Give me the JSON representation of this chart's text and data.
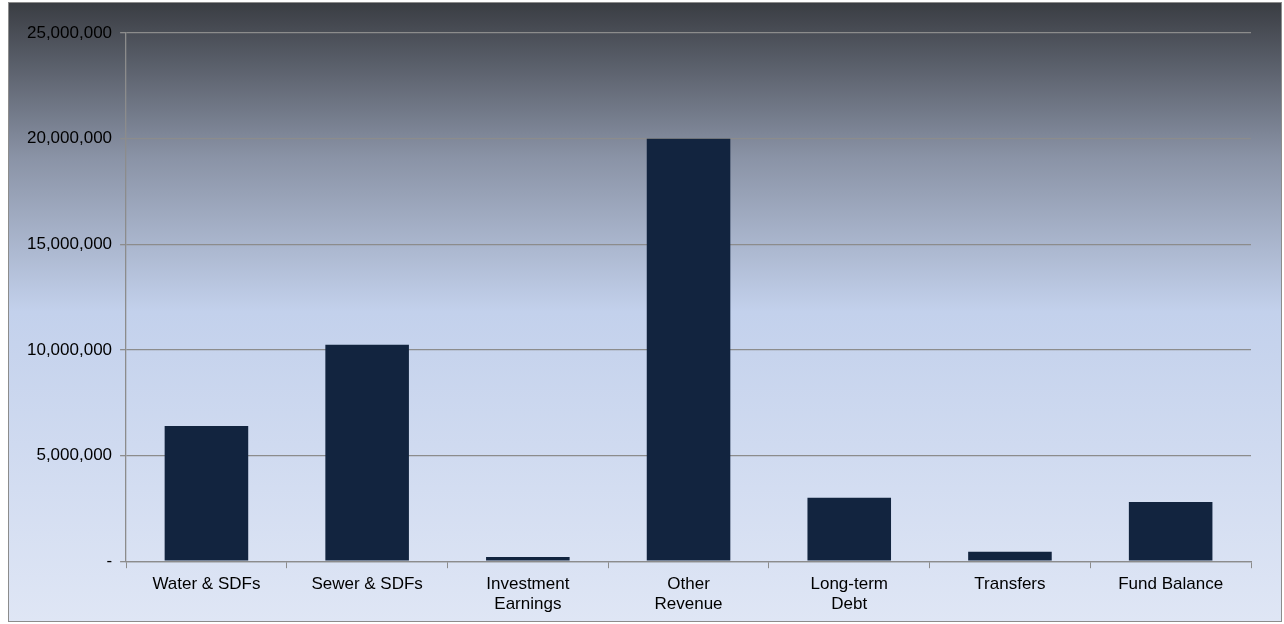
{
  "chart_data": {
    "type": "bar",
    "categories": [
      "Water & SDFs",
      "Sewer & SDFs",
      "Investment Earnings",
      "Other Revenue",
      "Long-term Debt",
      "Transfers",
      "Fund Balance"
    ],
    "values": [
      6400000,
      10250000,
      200000,
      20000000,
      3000000,
      450000,
      2800000
    ],
    "color": "#12243f",
    "ylim": [
      0,
      25000000
    ],
    "yticks": [
      {
        "value": 0,
        "label": "-"
      },
      {
        "value": 5000000,
        "label": "5,000,000"
      },
      {
        "value": 10000000,
        "label": "10,000,000"
      },
      {
        "value": 15000000,
        "label": "15,000,000"
      },
      {
        "value": 20000000,
        "label": "20,000,000"
      },
      {
        "value": 25000000,
        "label": "25,000,000"
      }
    ],
    "grid": "y",
    "legend": false
  }
}
